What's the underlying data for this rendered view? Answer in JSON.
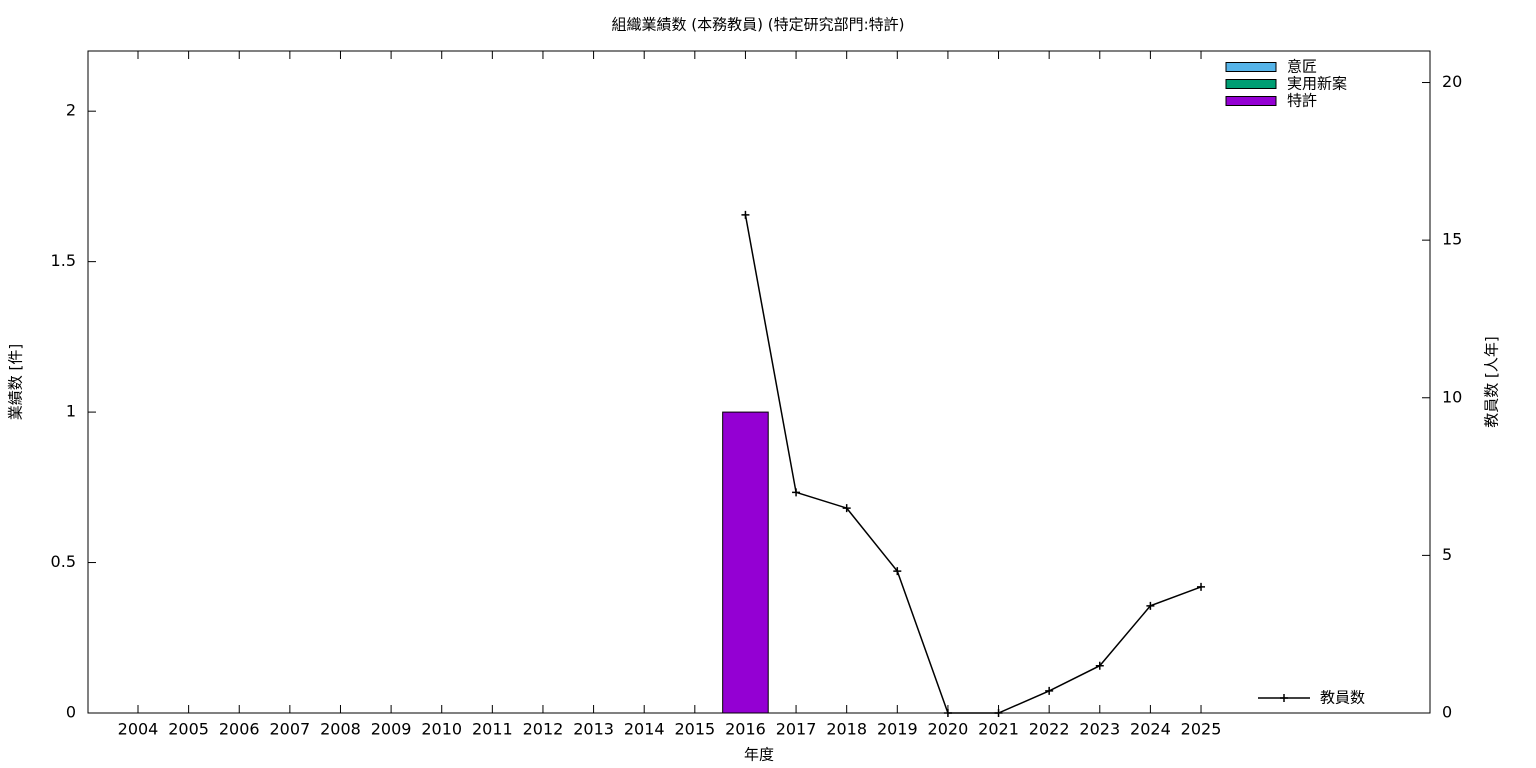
{
  "chart_data": {
    "type": "bar",
    "title": "組織業績数 (本務教員) (特定研究部門:特許)",
    "x_label": "年度",
    "y_label": "業績数 [件]",
    "y2_label": "教員数 [人年]",
    "categories": [
      "2004",
      "2005",
      "2006",
      "2007",
      "2008",
      "2009",
      "2010",
      "2011",
      "2012",
      "2013",
      "2014",
      "2015",
      "2016",
      "2017",
      "2018",
      "2019",
      "2020",
      "2021",
      "2022",
      "2023",
      "2024",
      "2025"
    ],
    "stacked": true,
    "series": [
      {
        "name": "意匠",
        "color": "#56b4e9",
        "values": [
          0,
          0,
          0,
          0,
          0,
          0,
          0,
          0,
          0,
          0,
          0,
          0,
          0,
          0,
          0,
          0,
          0,
          0,
          0,
          0,
          0,
          0
        ]
      },
      {
        "name": "実用新案",
        "color": "#009e73",
        "values": [
          0,
          0,
          0,
          0,
          0,
          0,
          0,
          0,
          0,
          0,
          0,
          0,
          0,
          0,
          0,
          0,
          0,
          0,
          0,
          0,
          0,
          0
        ]
      },
      {
        "name": "特許",
        "color": "#9400d3",
        "values": [
          0,
          0,
          0,
          0,
          0,
          0,
          0,
          0,
          0,
          0,
          0,
          0,
          1,
          0,
          0,
          0,
          0,
          0,
          0,
          0,
          0,
          0
        ]
      },
      {
        "name": "教員数",
        "type": "line",
        "axis": "y2",
        "color": "#000000",
        "values": [
          null,
          null,
          null,
          null,
          null,
          null,
          null,
          null,
          null,
          null,
          null,
          null,
          15.8,
          7.0,
          6.5,
          4.5,
          0,
          0,
          0.7,
          1.5,
          3.4,
          4.0
        ]
      }
    ],
    "ylim": [
      0,
      2.2
    ],
    "yticks": [
      0,
      0.5,
      1,
      1.5,
      2
    ],
    "y2lim": [
      0,
      21
    ],
    "y2ticks": [
      0,
      5,
      10,
      15,
      20
    ],
    "legend": "top-right",
    "line_legend": "bottom-right"
  }
}
